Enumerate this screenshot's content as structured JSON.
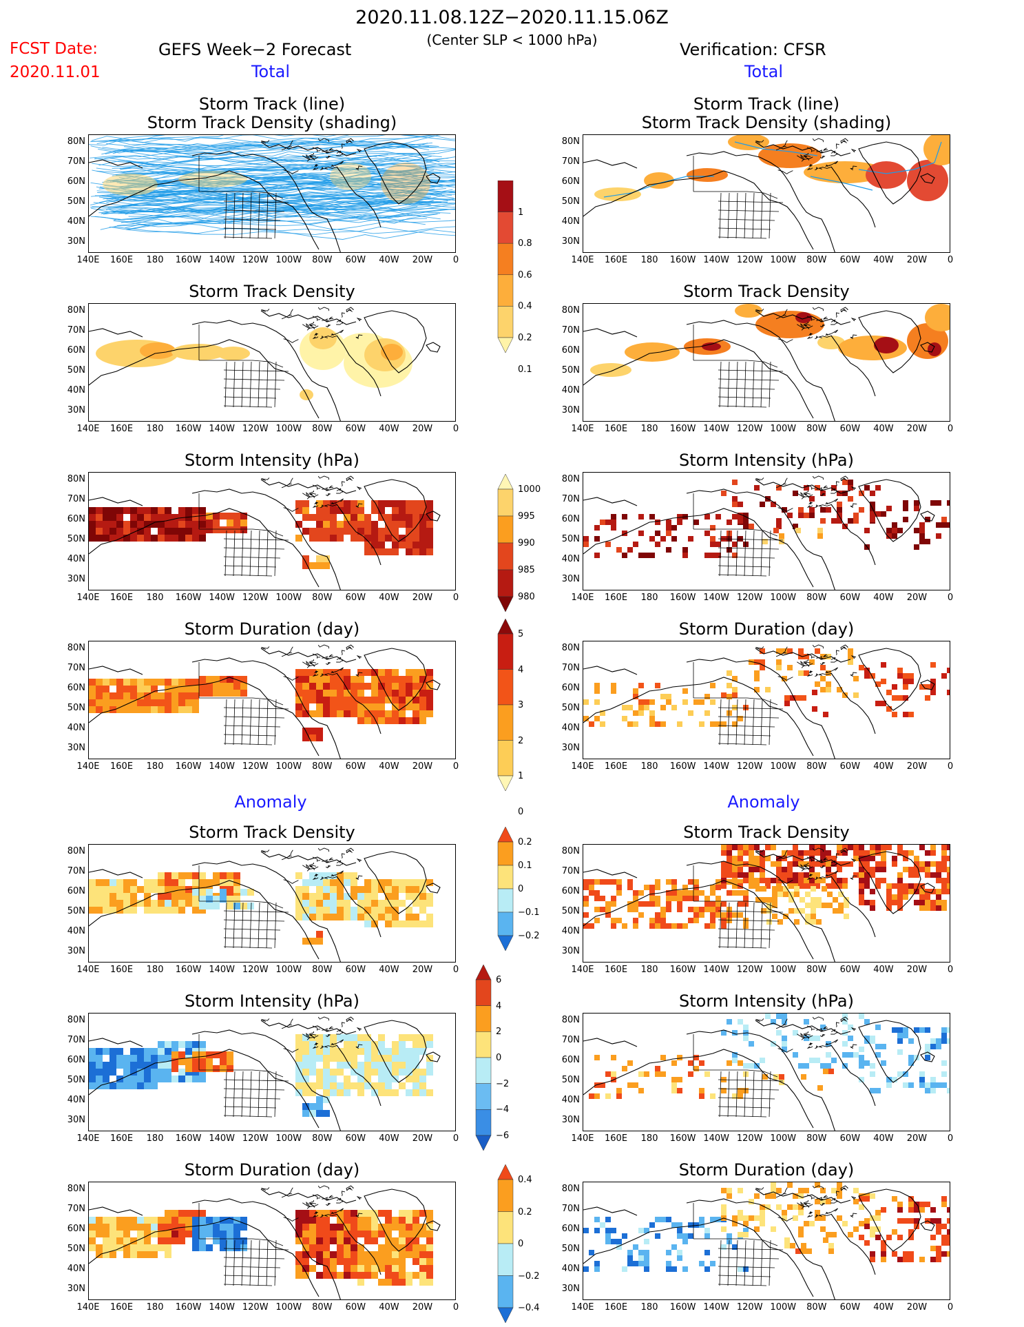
{
  "header": {
    "main_title": "2020.11.08.12Z−2020.11.15.06Z",
    "sub_title": "(Center SLP < 1000 hPa)",
    "fcst_label": "FCST Date:",
    "fcst_date": "2020.11.01",
    "left_head": "GEFS Week−2 Forecast",
    "right_head": "Verification: CFSR"
  },
  "sections": {
    "total": "Total",
    "anomaly": "Anomaly"
  },
  "map_axes": {
    "lat_labels": [
      "80N",
      "70N",
      "60N",
      "50N",
      "40N",
      "30N"
    ],
    "lon_labels": [
      "140E",
      "160E",
      "180",
      "160W",
      "140W",
      "120W",
      "100W",
      "80W",
      "60W",
      "40W",
      "20W",
      "0"
    ]
  },
  "panels": [
    {
      "id": "gefs-track-line",
      "title": [
        "Storm Track (line)",
        "Storm Track Density (shading)"
      ],
      "kind": "track-lines"
    },
    {
      "id": "cfsr-track-line",
      "title": [
        "Storm Track (line)",
        "Storm Track Density (shading)"
      ],
      "kind": "track-lines-obs"
    },
    {
      "id": "gefs-track-density",
      "title": [
        "Storm Track Density"
      ],
      "kind": "density-smooth"
    },
    {
      "id": "cfsr-track-density",
      "title": [
        "Storm Track Density"
      ],
      "kind": "density-smooth-obs"
    },
    {
      "id": "gefs-intensity",
      "title": [
        "Storm Intensity (hPa)"
      ],
      "kind": "intensity"
    },
    {
      "id": "cfsr-intensity",
      "title": [
        "Storm Intensity (hPa)"
      ],
      "kind": "intensity-obs"
    },
    {
      "id": "gefs-duration",
      "title": [
        "Storm Duration (day)"
      ],
      "kind": "duration"
    },
    {
      "id": "cfsr-duration",
      "title": [
        "Storm Duration (day)"
      ],
      "kind": "duration-obs"
    },
    {
      "id": "gefs-density-anom",
      "title": [
        "Storm Track Density"
      ],
      "kind": "anom-density"
    },
    {
      "id": "cfsr-density-anom",
      "title": [
        "Storm Track Density"
      ],
      "kind": "anom-density-obs"
    },
    {
      "id": "gefs-intensity-anom",
      "title": [
        "Storm Intensity (hPa)"
      ],
      "kind": "anom-intensity"
    },
    {
      "id": "cfsr-intensity-anom",
      "title": [
        "Storm Intensity (hPa)"
      ],
      "kind": "anom-intensity-obs"
    },
    {
      "id": "gefs-duration-anom",
      "title": [
        "Storm Duration (day)"
      ],
      "kind": "anom-duration"
    },
    {
      "id": "cfsr-duration-anom",
      "title": [
        "Storm Duration (day)"
      ],
      "kind": "anom-duration-obs"
    }
  ],
  "colorbars": [
    {
      "id": "density-total",
      "labels": [
        "1",
        "0.8",
        "0.6",
        "0.4",
        "0.2",
        "0.1"
      ],
      "colors": [
        "#a50f15",
        "#e34a33",
        "#f57f20",
        "#fdae3b",
        "#fdd36b",
        "#fff3a8"
      ],
      "tail": "bottom"
    },
    {
      "id": "intensity-total",
      "labels": [
        "1000",
        "995",
        "990",
        "985",
        "980"
      ],
      "colors": [
        "#fff6b5",
        "#fdd36b",
        "#fb9e1f",
        "#e3461d",
        "#b51a12",
        "#7f0606"
      ],
      "tail": "both"
    },
    {
      "id": "duration-total",
      "labels": [
        "5",
        "4",
        "3",
        "2",
        "1",
        "0"
      ],
      "colors": [
        "#8b0a0a",
        "#c81e12",
        "#f25418",
        "#fb9e1f",
        "#fdcd56",
        "#fff6b5"
      ],
      "tail": "both"
    },
    {
      "id": "density-anom",
      "labels": [
        "0.2",
        "0.1",
        "0",
        "−0.1",
        "−0.2"
      ],
      "colors": [
        "#f04a1a",
        "#fb9e1f",
        "#fde37a",
        "#b8ecf5",
        "#5ab4f0",
        "#1c6fd6"
      ],
      "tail": "both"
    },
    {
      "id": "intensity-anom",
      "labels": [
        "6",
        "4",
        "2",
        "0",
        "−2",
        "−4",
        "−6"
      ],
      "colors": [
        "#b51a12",
        "#e3461d",
        "#fb9e1f",
        "#fde37a",
        "#b8ecf5",
        "#6bbcf2",
        "#3a8ee5",
        "#1a5ec6"
      ],
      "tail": "both"
    },
    {
      "id": "duration-anom",
      "labels": [
        "0.4",
        "0.2",
        "0",
        "−0.2",
        "−0.4"
      ],
      "colors": [
        "#f04a1a",
        "#fb9e1f",
        "#fde37a",
        "#b8ecf5",
        "#5ab4f0",
        "#1c6fd6"
      ],
      "tail": "both"
    }
  ],
  "colors": {
    "track_line": "#1e9be8",
    "fcst_red": "#ff0000",
    "section_blue": "#1a1aff"
  }
}
